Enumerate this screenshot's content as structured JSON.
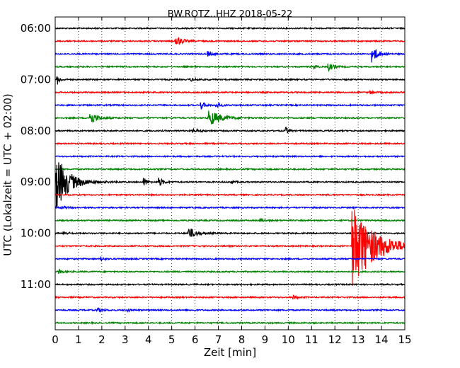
{
  "chart_data": {
    "type": "line",
    "title": "BW.ROTZ..HHZ 2018-05-22",
    "xlabel": "Zeit  [min]",
    "ylabel": "UTC (Lokalzeit = UTC + 02:00)",
    "xlim": [
      0,
      15
    ],
    "x_ticks": [
      "0",
      "1",
      "2",
      "3",
      "4",
      "5",
      "6",
      "7",
      "8",
      "9",
      "10",
      "11",
      "12",
      "13",
      "14",
      "15"
    ],
    "y_ticks": [
      "06:00",
      "07:00",
      "08:00",
      "09:00",
      "10:00",
      "11:00"
    ],
    "grid": "vertical dotted",
    "colors": [
      "#000000",
      "#ff0000",
      "#0000ff",
      "#008000"
    ],
    "traces": [
      {
        "label": "06:00",
        "color": "#000000",
        "events": []
      },
      {
        "label": "06:15",
        "color": "#ff0000",
        "events": [
          {
            "t": 5.15,
            "amp": 9,
            "decay": 0.25
          }
        ]
      },
      {
        "label": "06:30",
        "color": "#0000ff",
        "events": [
          {
            "t": 6.55,
            "amp": 4,
            "decay": 0.15
          },
          {
            "t": 13.6,
            "amp": 14,
            "decay": 0.2
          }
        ]
      },
      {
        "label": "06:45",
        "color": "#008000",
        "events": [
          {
            "t": 11.1,
            "amp": 3,
            "decay": 0.15
          },
          {
            "t": 11.7,
            "amp": 6,
            "decay": 0.2
          }
        ]
      },
      {
        "label": "07:00",
        "color": "#000000",
        "events": [
          {
            "t": 0.08,
            "amp": 8,
            "decay": 0.1
          },
          {
            "t": 5.8,
            "amp": 2,
            "decay": 0.3
          }
        ]
      },
      {
        "label": "07:15",
        "color": "#ff0000",
        "events": [
          {
            "t": 13.5,
            "amp": 2,
            "decay": 0.15
          }
        ]
      },
      {
        "label": "07:30",
        "color": "#0000ff",
        "events": [
          {
            "t": 6.25,
            "amp": 6,
            "decay": 0.15
          },
          {
            "t": 6.9,
            "amp": 3,
            "decay": 0.2
          }
        ]
      },
      {
        "label": "07:45",
        "color": "#008000",
        "events": [
          {
            "t": 1.5,
            "amp": 10,
            "decay": 0.25
          },
          {
            "t": 6.6,
            "amp": 12,
            "decay": 0.45
          }
        ]
      },
      {
        "label": "08:00",
        "color": "#000000",
        "events": [
          {
            "t": 5.9,
            "amp": 2,
            "decay": 0.3
          },
          {
            "t": 9.9,
            "amp": 5,
            "decay": 0.12
          }
        ]
      },
      {
        "label": "08:15",
        "color": "#ff0000",
        "events": []
      },
      {
        "label": "08:30",
        "color": "#0000ff",
        "events": []
      },
      {
        "label": "08:45",
        "color": "#008000",
        "events": []
      },
      {
        "label": "09:00",
        "color": "#000000",
        "events": [
          {
            "t": 0.05,
            "amp": 40,
            "decay": 0.5
          },
          {
            "t": 3.8,
            "amp": 7,
            "decay": 0.12
          },
          {
            "t": 4.45,
            "amp": 6,
            "decay": 0.18
          },
          {
            "t": 7.5,
            "amp": 2,
            "decay": 0.2
          }
        ]
      },
      {
        "label": "09:15",
        "color": "#ff0000",
        "events": []
      },
      {
        "label": "09:30",
        "color": "#0000ff",
        "events": [
          {
            "t": 0.3,
            "amp": 2,
            "decay": 0.2
          }
        ]
      },
      {
        "label": "09:45",
        "color": "#008000",
        "events": [
          {
            "t": 8.8,
            "amp": 2,
            "decay": 0.2
          }
        ]
      },
      {
        "label": "10:00",
        "color": "#000000",
        "events": [
          {
            "t": 0.35,
            "amp": 2,
            "decay": 0.2
          },
          {
            "t": 5.7,
            "amp": 9,
            "decay": 0.3
          }
        ]
      },
      {
        "label": "10:15",
        "color": "#ff0000",
        "events": [
          {
            "t": 12.75,
            "amp": 60,
            "decay": 0.9
          }
        ]
      },
      {
        "label": "10:30",
        "color": "#0000ff",
        "events": [
          {
            "t": 1.95,
            "amp": 2,
            "decay": 0.2
          }
        ]
      },
      {
        "label": "10:45",
        "color": "#008000",
        "events": [
          {
            "t": 0.15,
            "amp": 3,
            "decay": 0.2
          }
        ]
      },
      {
        "label": "11:00",
        "color": "#000000",
        "events": []
      },
      {
        "label": "11:15",
        "color": "#ff0000",
        "events": [
          {
            "t": 10.2,
            "amp": 3,
            "decay": 0.15
          }
        ]
      },
      {
        "label": "11:30",
        "color": "#0000ff",
        "events": [
          {
            "t": 1.8,
            "amp": 3,
            "decay": 0.2
          },
          {
            "t": 3.1,
            "amp": 1.5,
            "decay": 0.2
          }
        ]
      },
      {
        "label": "11:45",
        "color": "#008000",
        "events": []
      }
    ]
  }
}
